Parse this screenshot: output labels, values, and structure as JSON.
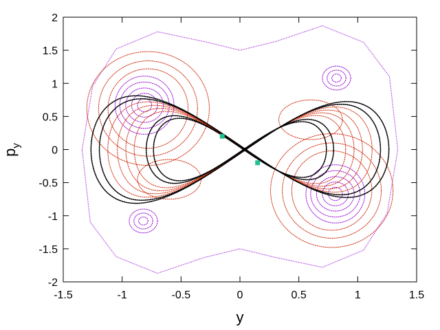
{
  "chart_data": {
    "type": "scatter",
    "title": "",
    "xlabel": "y",
    "ylabel": {
      "base": "p",
      "sub": "y"
    },
    "xlim": [
      -1.5,
      1.5
    ],
    "ylim": [
      -2,
      2
    ],
    "xticks": [
      -1.5,
      -1,
      -0.5,
      0,
      0.5,
      1,
      1.5
    ],
    "xtick_labels": [
      "-1.5",
      "-1",
      "-0.5",
      "0",
      "0.5",
      "1",
      "1.5"
    ],
    "yticks": [
      -2,
      -1.5,
      -1,
      -0.5,
      0,
      0.5,
      1,
      1.5,
      2
    ],
    "ytick_labels": [
      "-2",
      "-1.5",
      "-1",
      "-0.5",
      "0",
      "0.5",
      "1",
      "1.5",
      "2"
    ],
    "grid": false,
    "legend": "none",
    "colors": {
      "purple": "#9400d3",
      "red": "#cc2200",
      "black": "#000000",
      "fixed_point": "#20c090"
    },
    "series": [
      {
        "color": "purple",
        "style": "dots",
        "shape": "ring",
        "rings": [
          {
            "cx": -0.81,
            "cy": 0.67,
            "rx": [
              0.06,
              0.11,
              0.16,
              0.21,
              0.25
            ],
            "ry": [
              0.1,
              0.18,
              0.26,
              0.35,
              0.44
            ]
          },
          {
            "cx": 0.81,
            "cy": -0.67,
            "rx": [
              0.06,
              0.11,
              0.16,
              0.21,
              0.25
            ],
            "ry": [
              0.1,
              0.18,
              0.26,
              0.35,
              0.44
            ]
          },
          {
            "cx": 0.82,
            "cy": 1.08,
            "rx": [
              0.04,
              0.08,
              0.12
            ],
            "ry": [
              0.06,
              0.12,
              0.18
            ]
          },
          {
            "cx": -0.82,
            "cy": -1.08,
            "rx": [
              0.04,
              0.08,
              0.12
            ],
            "ry": [
              0.06,
              0.12,
              0.18
            ]
          }
        ]
      },
      {
        "color": "purple",
        "style": "dots",
        "shape": "boundary",
        "points": [
          [
            -1.34,
            0.0
          ],
          [
            -1.25,
            0.96
          ],
          [
            -1.05,
            1.52
          ],
          [
            -0.7,
            1.78
          ],
          [
            -0.3,
            1.63
          ],
          [
            0.0,
            1.5
          ],
          [
            0.3,
            1.63
          ],
          [
            0.7,
            1.87
          ],
          [
            1.05,
            1.62
          ],
          [
            1.27,
            1.1
          ],
          [
            1.34,
            0.0
          ],
          [
            1.25,
            -0.96
          ],
          [
            1.05,
            -1.52
          ],
          [
            0.7,
            -1.78
          ],
          [
            0.3,
            -1.63
          ],
          [
            0.0,
            -1.5
          ],
          [
            -0.3,
            -1.63
          ],
          [
            -0.7,
            -1.87
          ],
          [
            -1.05,
            -1.62
          ],
          [
            -1.27,
            -1.1
          ]
        ]
      },
      {
        "color": "red",
        "style": "dotted-curve",
        "shape": "lobe-ring",
        "lobes": [
          {
            "cx": -0.78,
            "cy": 0.62,
            "rx": [
              0.34,
              0.42,
              0.52
            ],
            "ry": [
              0.6,
              0.72,
              0.86
            ]
          },
          {
            "cx": 0.78,
            "cy": -0.62,
            "rx": [
              0.34,
              0.42,
              0.52
            ],
            "ry": [
              0.6,
              0.72,
              0.86
            ]
          },
          {
            "cx": -0.6,
            "cy": -0.45,
            "rx": [
              0.27
            ],
            "ry": [
              0.3
            ]
          },
          {
            "cx": 0.6,
            "cy": 0.45,
            "rx": [
              0.27
            ],
            "ry": [
              0.3
            ]
          }
        ]
      },
      {
        "color": "red",
        "style": "dotted-curve",
        "shape": "figure-eight",
        "scales": [
          0.88,
          0.95,
          1.02,
          1.1
        ]
      },
      {
        "color": "black",
        "style": "dotted-curve",
        "shape": "figure-eight",
        "scales": [
          0.72,
          0.78,
          1.17,
          1.24
        ]
      }
    ],
    "fixed_points": [
      [
        -0.15,
        0.2
      ],
      [
        0.15,
        -0.2
      ]
    ]
  }
}
